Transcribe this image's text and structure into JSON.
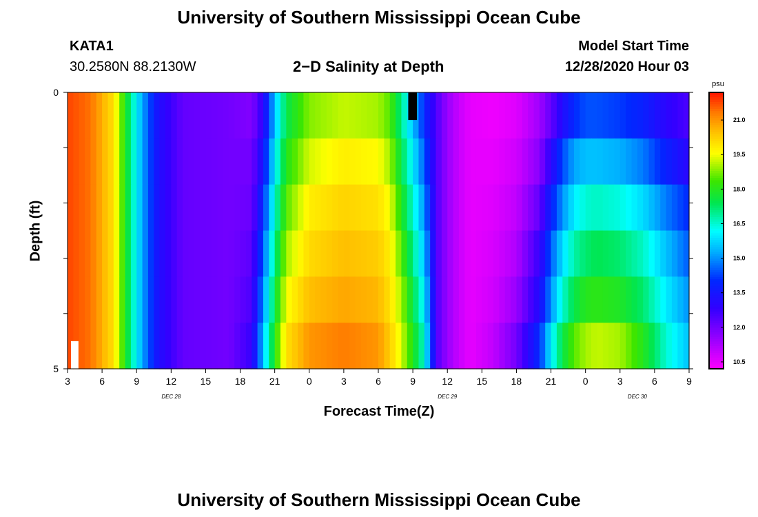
{
  "page_title": "University of Southern Mississippi Ocean Cube",
  "station": {
    "id": "KATA1",
    "coords": "30.2580N 88.2130W"
  },
  "model": {
    "label": "Model Start Time",
    "start": "12/28/2020 Hour 03"
  },
  "footer_title": "University of Southern Mississippi Ocean Cube",
  "chart_data": {
    "type": "heatmap",
    "title": "2−D Salinity at Depth",
    "xlabel": "Forecast Time(Z)",
    "ylabel": "Depth (ft)",
    "units": "psu",
    "x_start_hour": 3,
    "x_end_hour": 57,
    "x_ticks": [
      3,
      6,
      9,
      12,
      15,
      18,
      21,
      24,
      27,
      30,
      33,
      36,
      39,
      42,
      45,
      48,
      51,
      54,
      57
    ],
    "x_tick_labels": [
      "3",
      "6",
      "9",
      "12",
      "15",
      "18",
      "21",
      "0",
      "3",
      "6",
      "9",
      "12",
      "15",
      "18",
      "21",
      "0",
      "3",
      "6",
      "9"
    ],
    "date_labels": [
      {
        "text": "DEC 28",
        "hour": 12
      },
      {
        "text": "DEC 29",
        "hour": 36
      },
      {
        "text": "DEC 30",
        "hour": 52.5
      }
    ],
    "ylim": [
      0,
      5
    ],
    "y_tick_labels": [
      "0",
      "5"
    ],
    "y_minor_ticks": [
      0,
      1,
      2,
      3,
      4,
      5
    ],
    "colorbar": {
      "min": 10.2,
      "max": 22.2,
      "ticks": [
        "10.5",
        "12.0",
        "13.5",
        "15.0",
        "16.5",
        "18.0",
        "19.5",
        "21.0"
      ],
      "tick_values": [
        10.5,
        12.0,
        13.5,
        15.0,
        16.5,
        18.0,
        19.5,
        21.0
      ]
    },
    "profiles_note": "salinity (psu) at forecast hour key points, per depth row (row 0 = surface)",
    "profiles": {
      "time_keys": [
        3,
        5,
        7,
        8,
        9,
        10,
        11,
        13,
        17,
        19,
        20,
        21,
        22,
        24,
        27,
        30,
        31,
        32,
        33,
        34,
        35,
        36,
        37,
        38,
        40,
        42,
        44,
        45,
        46,
        47,
        48,
        49,
        51,
        53,
        55,
        57
      ],
      "rows": [
        [
          21.8,
          21.4,
          20.0,
          18.0,
          16.0,
          14.5,
          13.2,
          12.2,
          12.0,
          11.8,
          13.0,
          15.5,
          17.5,
          18.8,
          19.2,
          19.0,
          18.5,
          17.0,
          15.5,
          14.0,
          12.5,
          11.5,
          10.9,
          10.5,
          10.4,
          10.6,
          11.4,
          12.2,
          13.2,
          14.0,
          14.4,
          14.4,
          14.2,
          13.8,
          13.0,
          12.5
        ],
        [
          21.8,
          21.4,
          20.0,
          18.0,
          16.0,
          14.5,
          13.2,
          12.2,
          12.0,
          12.0,
          13.5,
          16.0,
          18.0,
          19.3,
          19.8,
          19.6,
          19.0,
          17.5,
          16.0,
          14.5,
          12.5,
          11.5,
          10.9,
          10.5,
          10.5,
          10.8,
          11.7,
          13.0,
          14.3,
          15.2,
          15.5,
          15.5,
          15.3,
          14.8,
          13.8,
          13.0
        ],
        [
          21.8,
          21.4,
          20.0,
          18.0,
          16.0,
          14.5,
          13.2,
          12.2,
          12.0,
          12.1,
          14.0,
          16.5,
          18.5,
          19.8,
          20.2,
          20.0,
          19.5,
          18.0,
          16.5,
          15.0,
          12.5,
          11.5,
          10.9,
          10.5,
          10.6,
          11.0,
          12.2,
          13.8,
          15.0,
          16.0,
          16.5,
          16.6,
          16.4,
          15.8,
          14.8,
          14.0
        ],
        [
          21.8,
          21.4,
          20.0,
          18.0,
          16.0,
          14.5,
          13.2,
          12.2,
          12.0,
          12.3,
          14.5,
          17.0,
          19.0,
          20.1,
          20.5,
          20.3,
          19.8,
          18.5,
          17.0,
          15.5,
          12.5,
          11.5,
          10.9,
          10.5,
          10.7,
          11.2,
          12.8,
          14.5,
          15.8,
          16.8,
          17.2,
          17.4,
          17.2,
          16.6,
          15.5,
          14.5
        ],
        [
          21.8,
          21.4,
          20.0,
          18.0,
          16.0,
          14.5,
          13.2,
          12.2,
          12.0,
          12.5,
          15.0,
          17.5,
          19.5,
          20.5,
          20.8,
          20.6,
          20.0,
          19.0,
          17.5,
          16.0,
          12.5,
          11.5,
          10.9,
          10.5,
          10.8,
          11.5,
          13.2,
          15.0,
          16.5,
          17.5,
          18.0,
          18.1,
          17.9,
          17.2,
          16.0,
          15.0
        ],
        [
          21.8,
          21.4,
          20.0,
          18.0,
          16.0,
          14.5,
          13.2,
          12.2,
          12.0,
          12.8,
          15.5,
          18.0,
          20.0,
          21.0,
          21.3,
          21.0,
          20.3,
          19.3,
          18.0,
          16.5,
          12.5,
          11.5,
          10.9,
          10.5,
          11.0,
          12.0,
          14.0,
          16.0,
          17.5,
          18.5,
          19.0,
          19.2,
          19.0,
          18.0,
          16.5,
          15.5
        ]
      ]
    },
    "markers": [
      {
        "color": "#000000",
        "hour_start": 32.6,
        "hour_end": 33.35,
        "depth_start": 0,
        "depth_end": 0.5
      },
      {
        "color": "#ffffff",
        "hour_start": 3.3,
        "hour_end": 3.95,
        "depth_start": 4.5,
        "depth_end": 5
      }
    ]
  }
}
